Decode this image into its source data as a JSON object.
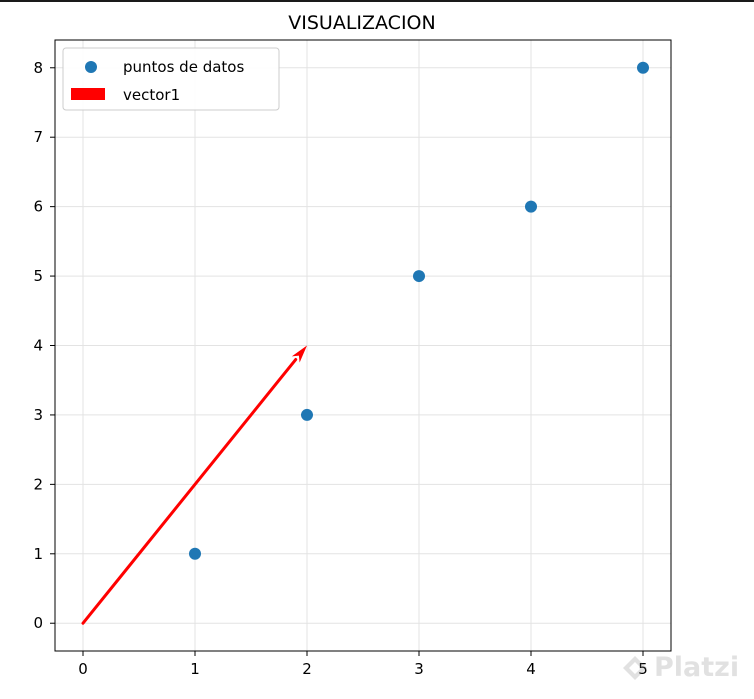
{
  "chart_data": {
    "type": "scatter",
    "title": "VISUALIZACION",
    "xlabel": "",
    "ylabel": "",
    "xlim": [
      -0.25,
      5.25
    ],
    "ylim": [
      -0.4,
      8.4
    ],
    "xticks": [
      0,
      1,
      2,
      3,
      4,
      5
    ],
    "yticks": [
      0,
      1,
      2,
      3,
      4,
      5,
      6,
      7,
      8
    ],
    "grid": true,
    "legend_position": "top-left",
    "series": [
      {
        "name": "puntos de datos",
        "kind": "scatter",
        "color": "#1f77b4",
        "x": [
          1,
          2,
          3,
          4,
          5
        ],
        "y": [
          1,
          3,
          5,
          6,
          8
        ]
      }
    ],
    "vectors": [
      {
        "name": "vector1",
        "color": "#ff0000",
        "origin": [
          0,
          0
        ],
        "components": [
          2,
          4
        ]
      }
    ]
  },
  "watermark": {
    "text": "Platzi",
    "icon": "platzi-logo-icon"
  }
}
